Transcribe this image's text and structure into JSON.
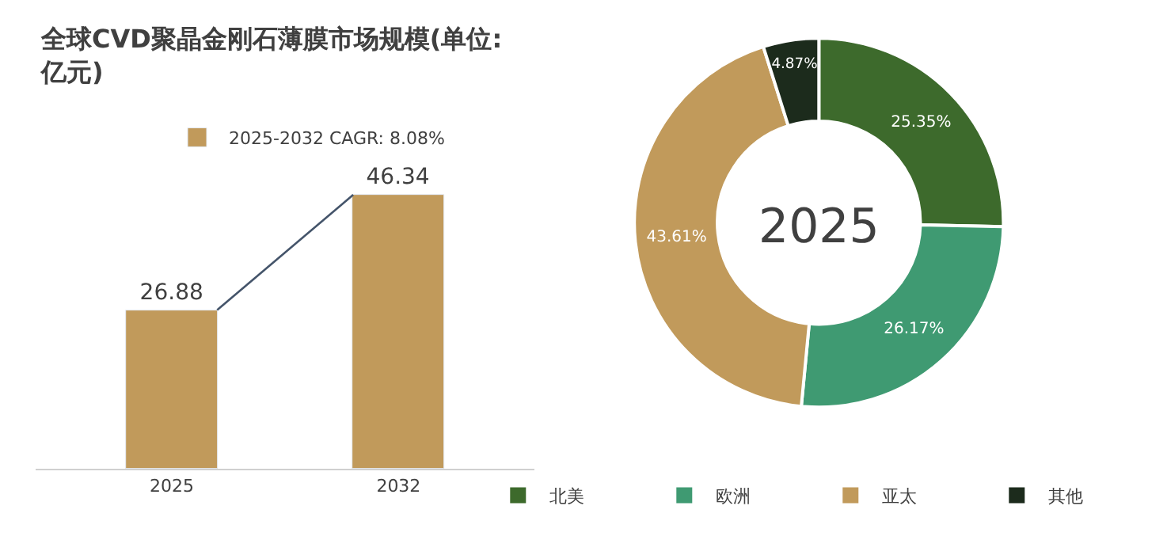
{
  "chart_data": [
    {
      "type": "bar",
      "title": "全球CVD聚晶金刚石薄膜市场规模(单位:\n亿元)",
      "categories": [
        "2025",
        "2032"
      ],
      "data_labels": true,
      "legend": "top",
      "series": [
        {
          "name": "2025-2032 CAGR: 8.08%",
          "color": "#c19a5b",
          "values": [
            26.88,
            46.34
          ]
        }
      ]
    },
    {
      "type": "donut",
      "title": "2025",
      "categories": [
        "北美",
        "欧洲",
        "亚太",
        "其他"
      ],
      "values": [
        25.35,
        26.17,
        43.61,
        4.87
      ],
      "value_labels": [
        "25.35%",
        "26.17%",
        "43.61%",
        "4.87%"
      ],
      "colors": [
        "#3d6a2c",
        "#3f9a72",
        "#c19a5b",
        "#1c2b1c"
      ],
      "legend": "bottom"
    }
  ]
}
